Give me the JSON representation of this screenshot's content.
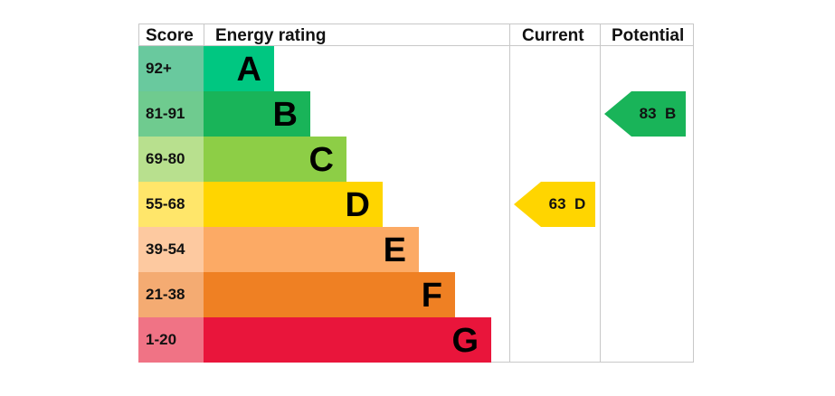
{
  "chart_data": {
    "type": "table",
    "columns": [
      "Score",
      "Energy rating",
      "Current",
      "Potential"
    ],
    "bands": [
      {
        "score": "92+",
        "letter": "A",
        "color": "#00c781",
        "score_color": "#69c99e"
      },
      {
        "score": "81-91",
        "letter": "B",
        "color": "#19b459",
        "score_color": "#6fcb8f"
      },
      {
        "score": "69-80",
        "letter": "C",
        "color": "#8dce46",
        "score_color": "#b8e08e"
      },
      {
        "score": "55-68",
        "letter": "D",
        "color": "#ffd500",
        "score_color": "#ffe66a"
      },
      {
        "score": "39-54",
        "letter": "E",
        "color": "#fcaa65",
        "score_color": "#fdc9a0"
      },
      {
        "score": "21-38",
        "letter": "F",
        "color": "#ef8023",
        "score_color": "#f4ab72"
      },
      {
        "score": "1-20",
        "letter": "G",
        "color": "#e9153b",
        "score_color": "#f07385"
      }
    ],
    "current": {
      "value": 63,
      "band": "D",
      "label": "63  D",
      "color": "#ffd500"
    },
    "potential": {
      "value": 83,
      "band": "B",
      "label": "83  B",
      "color": "#19b459"
    }
  }
}
